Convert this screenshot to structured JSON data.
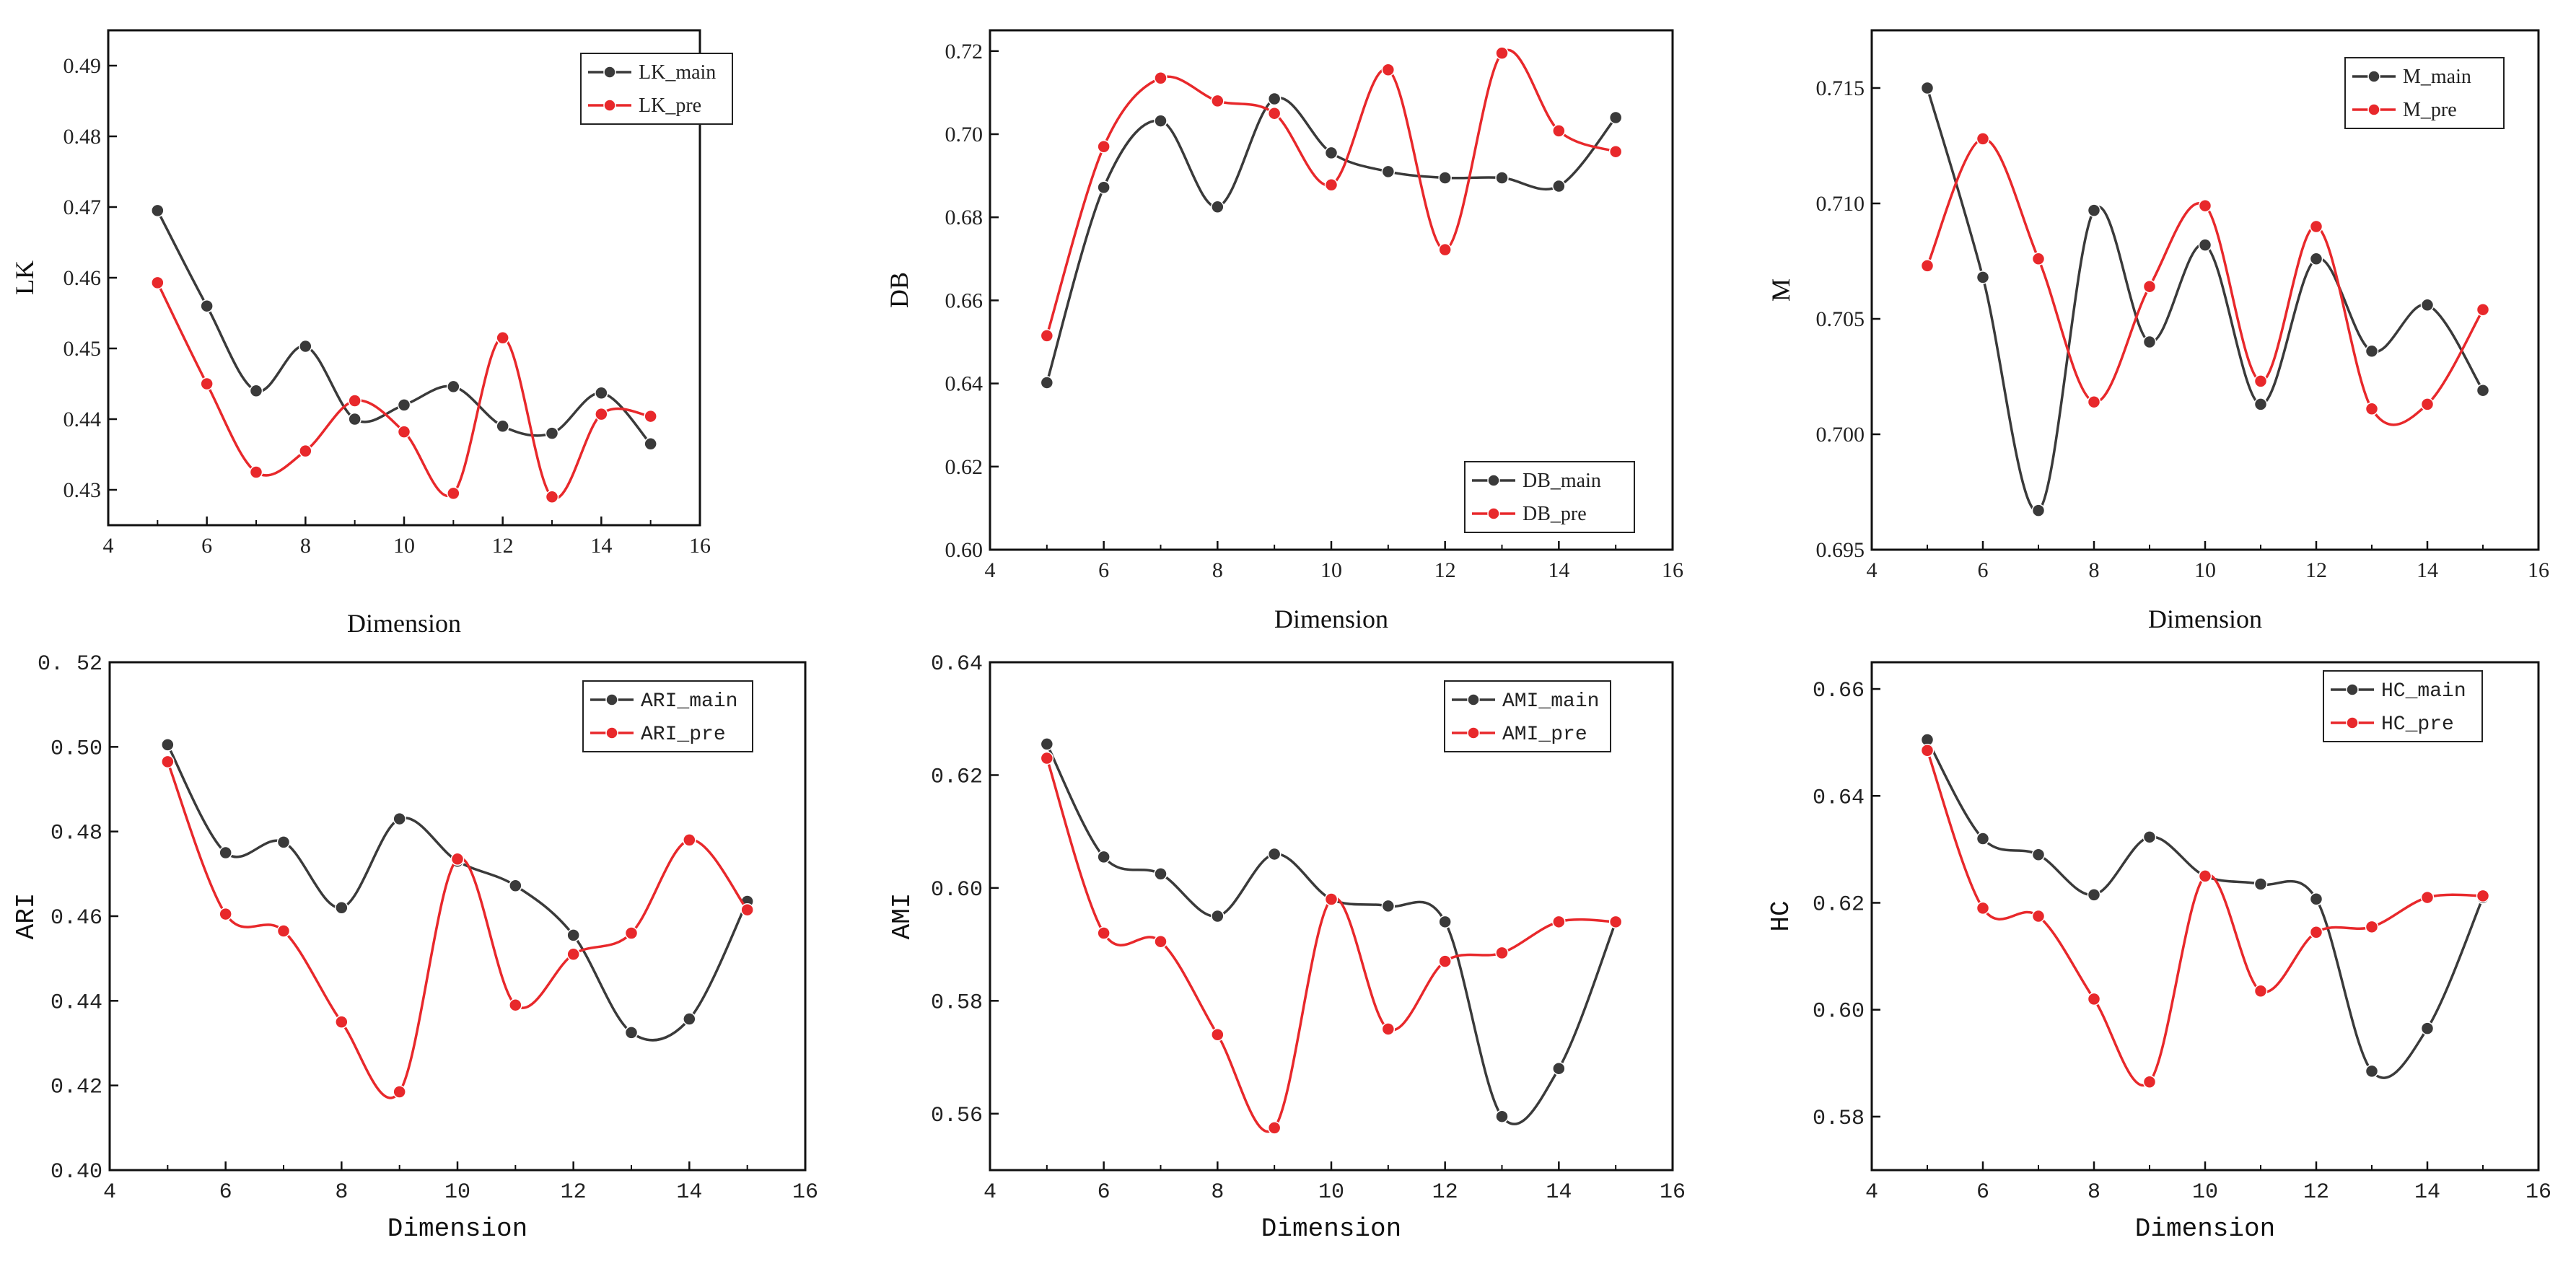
{
  "colors": {
    "main": "#3a3a3a",
    "pre": "#e8282b"
  },
  "chart_data": [
    {
      "type": "line",
      "xlabel": "Dimension",
      "ylabel": "LK",
      "xlim": [
        4,
        16
      ],
      "ylim": [
        0.425,
        0.495
      ],
      "xticks": [
        "4",
        "6",
        "8",
        "10",
        "12",
        "14",
        "16"
      ],
      "yticks": [
        "0.43",
        "0.44",
        "0.45",
        "0.46",
        "0.47",
        "0.48",
        "0.49"
      ],
      "x": [
        5,
        6,
        7,
        8,
        9,
        10,
        11,
        12,
        13,
        14,
        15
      ],
      "legend_position": "top-right",
      "series": [
        {
          "name": "LK_main",
          "values": [
            0.4695,
            0.456,
            0.444,
            0.4503,
            0.44,
            0.442,
            0.4446,
            0.439,
            0.438,
            0.4437,
            0.4365
          ]
        },
        {
          "name": "LK_pre",
          "values": [
            0.4593,
            0.445,
            0.4325,
            0.4355,
            0.4426,
            0.4382,
            0.4295,
            0.4515,
            0.429,
            0.4407,
            0.4404
          ]
        }
      ]
    },
    {
      "type": "line",
      "xlabel": "Dimension",
      "ylabel": "DB",
      "xlim": [
        4,
        16
      ],
      "ylim": [
        0.6,
        0.725
      ],
      "xticks": [
        "4",
        "6",
        "8",
        "10",
        "12",
        "14",
        "16"
      ],
      "yticks": [
        "0.60",
        "0.62",
        "0.64",
        "0.66",
        "0.68",
        "0.70",
        "0.72"
      ],
      "x": [
        5,
        6,
        7,
        8,
        9,
        10,
        11,
        12,
        13,
        14,
        15
      ],
      "legend_position": "bottom-right",
      "series": [
        {
          "name": "DB_main",
          "values": [
            0.6402,
            0.6872,
            0.7032,
            0.6825,
            0.7085,
            0.6955,
            0.691,
            0.6895,
            0.6895,
            0.6875,
            0.704
          ]
        },
        {
          "name": "DB_pre",
          "values": [
            0.6515,
            0.697,
            0.7135,
            0.708,
            0.705,
            0.6878,
            0.7155,
            0.6722,
            0.7195,
            0.7008,
            0.6958
          ]
        }
      ]
    },
    {
      "type": "line",
      "xlabel": "Dimension",
      "ylabel": "M",
      "xlim": [
        4,
        16
      ],
      "ylim": [
        0.695,
        0.7175
      ],
      "xticks": [
        "4",
        "6",
        "8",
        "10",
        "12",
        "14",
        "16"
      ],
      "yticks": [
        "0.695",
        "0.700",
        "0.705",
        "0.710",
        "0.715"
      ],
      "x": [
        5,
        6,
        7,
        8,
        9,
        10,
        11,
        12,
        13,
        14,
        15
      ],
      "legend_position": "top-right",
      "series": [
        {
          "name": "M_main",
          "values": [
            0.715,
            0.7068,
            0.6967,
            0.7097,
            0.704,
            0.7082,
            0.7013,
            0.7076,
            0.7036,
            0.7056,
            0.7019
          ]
        },
        {
          "name": "M_pre",
          "values": [
            0.7073,
            0.7128,
            0.7076,
            0.7014,
            0.7064,
            0.7099,
            0.7023,
            0.709,
            0.7011,
            0.7013,
            0.7054
          ]
        }
      ]
    },
    {
      "type": "line",
      "xlabel": "Dimension",
      "ylabel": "ARI",
      "xlim": [
        4,
        16
      ],
      "ylim": [
        0.4,
        0.52
      ],
      "xticks": [
        "4",
        "6",
        "8",
        "10",
        "12",
        "14",
        "16"
      ],
      "yticks": [
        "0.40",
        "0.42",
        "0.44",
        "0.46",
        "0.48",
        "0.50",
        "0. 52"
      ],
      "x": [
        5,
        6,
        7,
        8,
        9,
        10,
        11,
        12,
        13,
        14,
        15
      ],
      "legend_position": "top-right",
      "series": [
        {
          "name": "ARI_main",
          "values": [
            0.5005,
            0.475,
            0.4775,
            0.462,
            0.483,
            0.473,
            0.4672,
            0.4555,
            0.4325,
            0.4357,
            0.4635
          ]
        },
        {
          "name": "ARI_pre",
          "values": [
            0.4965,
            0.4605,
            0.4565,
            0.435,
            0.4185,
            0.4735,
            0.439,
            0.451,
            0.456,
            0.478,
            0.4615
          ]
        }
      ]
    },
    {
      "type": "line",
      "xlabel": "Dimension",
      "ylabel": "AMI",
      "xlim": [
        4,
        16
      ],
      "ylim": [
        0.55,
        0.64
      ],
      "xticks": [
        "4",
        "6",
        "8",
        "10",
        "12",
        "14",
        "16"
      ],
      "yticks": [
        "0.56",
        "0.58",
        "0.60",
        "0.62",
        "0.64"
      ],
      "x": [
        5,
        6,
        7,
        8,
        9,
        10,
        11,
        12,
        13,
        14,
        15
      ],
      "legend_position": "top-right",
      "series": [
        {
          "name": "AMI_main",
          "values": [
            0.6255,
            0.6055,
            0.6025,
            0.595,
            0.606,
            0.598,
            0.5968,
            0.594,
            0.5595,
            0.568,
            0.594
          ]
        },
        {
          "name": "AMI_pre",
          "values": [
            0.623,
            0.592,
            0.5905,
            0.574,
            0.5575,
            0.598,
            0.575,
            0.587,
            0.5885,
            0.594,
            0.594
          ]
        }
      ]
    },
    {
      "type": "line",
      "xlabel": "Dimension",
      "ylabel": "HC",
      "xlim": [
        4,
        16
      ],
      "ylim": [
        0.57,
        0.665
      ],
      "xticks": [
        "4",
        "6",
        "8",
        "10",
        "12",
        "14",
        "16"
      ],
      "yticks": [
        "0.58",
        "0.60",
        "0.62",
        "0.64",
        "0.66"
      ],
      "x": [
        5,
        6,
        7,
        8,
        9,
        10,
        11,
        12,
        13,
        14,
        15
      ],
      "legend_position": "top-right",
      "series": [
        {
          "name": "HC_main",
          "values": [
            0.6505,
            0.632,
            0.629,
            0.6215,
            0.6323,
            0.625,
            0.6235,
            0.6207,
            0.5885,
            0.5965,
            0.621
          ]
        },
        {
          "name": "HC_pre",
          "values": [
            0.6485,
            0.619,
            0.6175,
            0.602,
            0.5865,
            0.625,
            0.6035,
            0.6145,
            0.6155,
            0.621,
            0.6213
          ]
        }
      ]
    }
  ]
}
